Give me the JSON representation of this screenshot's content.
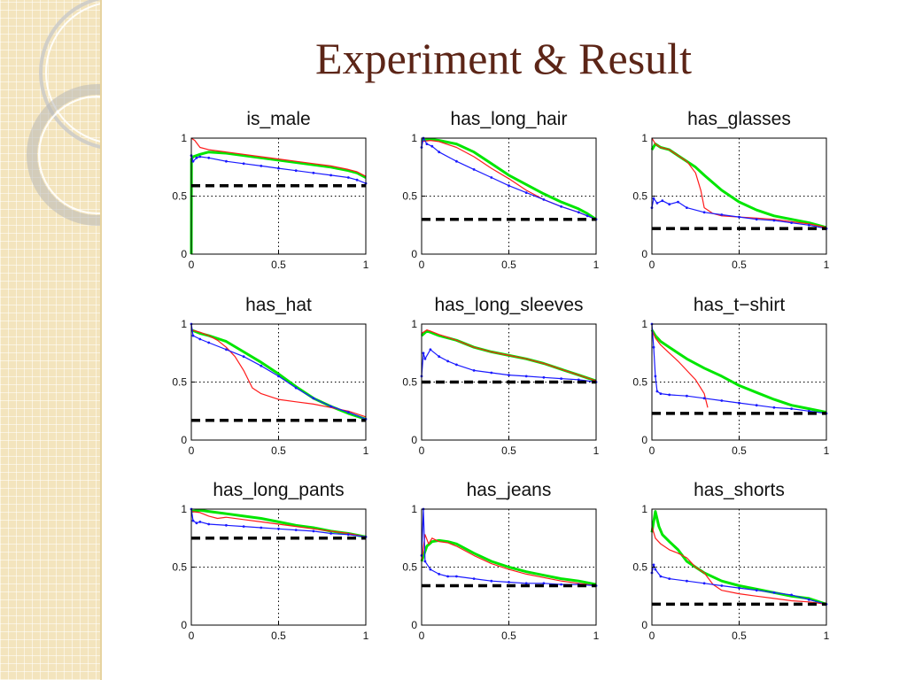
{
  "slide": {
    "title": "Experiment & Result"
  },
  "colors": {
    "green": "#00e600",
    "red": "#ff1a1a",
    "blue": "#1a1aff",
    "baseline": "#000000",
    "title": "#5c2517"
  },
  "chart_data": [
    {
      "type": "line",
      "title": "is_male",
      "xlim": [
        0,
        1
      ],
      "ylim": [
        0,
        1
      ],
      "xticks": [
        "0",
        "0.5",
        "1"
      ],
      "yticks": [
        "0",
        "0.5",
        "1"
      ],
      "baseline": 0.59,
      "series": [
        {
          "color": "green",
          "x": [
            0,
            0.001,
            0.01,
            0.05,
            0.1,
            0.2,
            0.3,
            0.4,
            0.5,
            0.6,
            0.7,
            0.8,
            0.9,
            0.95,
            1.0
          ],
          "y": [
            0,
            0.82,
            0.84,
            0.86,
            0.88,
            0.87,
            0.85,
            0.83,
            0.81,
            0.79,
            0.77,
            0.75,
            0.72,
            0.7,
            0.66
          ]
        },
        {
          "color": "red",
          "x": [
            0,
            0.02,
            0.05,
            0.1,
            0.2,
            0.3,
            0.4,
            0.5,
            0.6,
            0.7,
            0.8,
            0.9,
            0.95,
            1.0
          ],
          "y": [
            1.0,
            0.98,
            0.92,
            0.9,
            0.88,
            0.86,
            0.84,
            0.82,
            0.8,
            0.78,
            0.76,
            0.73,
            0.71,
            0.67
          ]
        },
        {
          "color": "blue",
          "x": [
            0,
            0.01,
            0.03,
            0.05,
            0.1,
            0.2,
            0.3,
            0.4,
            0.5,
            0.6,
            0.7,
            0.8,
            0.9,
            0.95,
            1.0
          ],
          "y": [
            0.85,
            0.8,
            0.83,
            0.84,
            0.83,
            0.8,
            0.78,
            0.76,
            0.74,
            0.72,
            0.7,
            0.68,
            0.66,
            0.64,
            0.61
          ]
        }
      ]
    },
    {
      "type": "line",
      "title": "has_long_hair",
      "xlim": [
        0,
        1
      ],
      "ylim": [
        0,
        1
      ],
      "xticks": [
        "0",
        "0.5",
        "1"
      ],
      "yticks": [
        "0",
        "0.5",
        "1"
      ],
      "baseline": 0.3,
      "series": [
        {
          "color": "green",
          "x": [
            0,
            0.05,
            0.1,
            0.2,
            0.3,
            0.4,
            0.5,
            0.6,
            0.7,
            0.8,
            0.9,
            0.95,
            1.0
          ],
          "y": [
            0.98,
            0.99,
            0.98,
            0.95,
            0.88,
            0.78,
            0.68,
            0.6,
            0.52,
            0.45,
            0.39,
            0.35,
            0.3
          ]
        },
        {
          "color": "red",
          "x": [
            0,
            0.05,
            0.1,
            0.2,
            0.3,
            0.4,
            0.5,
            0.6,
            0.7,
            0.8,
            0.9,
            0.95,
            1.0
          ],
          "y": [
            0.97,
            0.98,
            0.97,
            0.92,
            0.84,
            0.74,
            0.65,
            0.55,
            0.47,
            0.41,
            0.36,
            0.33,
            0.3
          ]
        },
        {
          "color": "blue",
          "x": [
            0,
            0.01,
            0.03,
            0.06,
            0.1,
            0.2,
            0.3,
            0.4,
            0.5,
            0.6,
            0.7,
            0.8,
            0.9,
            0.95,
            1.0
          ],
          "y": [
            0.92,
            1.0,
            0.95,
            0.93,
            0.88,
            0.8,
            0.73,
            0.66,
            0.59,
            0.53,
            0.47,
            0.41,
            0.36,
            0.33,
            0.3
          ]
        }
      ]
    },
    {
      "type": "line",
      "title": "has_glasses",
      "xlim": [
        0,
        1
      ],
      "ylim": [
        0,
        1
      ],
      "xticks": [
        "0",
        "0.5",
        "1"
      ],
      "yticks": [
        "0",
        "0.5",
        "1"
      ],
      "baseline": 0.22,
      "series": [
        {
          "color": "green",
          "x": [
            0,
            0.02,
            0.05,
            0.1,
            0.15,
            0.2,
            0.25,
            0.3,
            0.4,
            0.5,
            0.6,
            0.7,
            0.8,
            0.9,
            1.0
          ],
          "y": [
            0.9,
            0.95,
            0.92,
            0.9,
            0.85,
            0.8,
            0.75,
            0.68,
            0.55,
            0.45,
            0.38,
            0.33,
            0.3,
            0.27,
            0.23
          ]
        },
        {
          "color": "red",
          "x": [
            0,
            0.02,
            0.05,
            0.1,
            0.15,
            0.2,
            0.25,
            0.28,
            0.3,
            0.35,
            0.4,
            0.5,
            0.6,
            0.7,
            0.8,
            0.9,
            1.0
          ],
          "y": [
            1.0,
            0.95,
            0.92,
            0.9,
            0.85,
            0.8,
            0.7,
            0.55,
            0.4,
            0.35,
            0.33,
            0.32,
            0.31,
            0.3,
            0.28,
            0.26,
            0.23
          ]
        },
        {
          "color": "blue",
          "x": [
            0,
            0.01,
            0.03,
            0.06,
            0.1,
            0.15,
            0.2,
            0.3,
            0.4,
            0.5,
            0.6,
            0.7,
            0.8,
            0.9,
            1.0
          ],
          "y": [
            0.4,
            0.48,
            0.44,
            0.46,
            0.43,
            0.45,
            0.4,
            0.36,
            0.34,
            0.32,
            0.3,
            0.29,
            0.27,
            0.25,
            0.22
          ]
        }
      ]
    },
    {
      "type": "line",
      "title": "has_hat",
      "xlim": [
        0,
        1
      ],
      "ylim": [
        0,
        1
      ],
      "xticks": [
        "0",
        "0.5",
        "1"
      ],
      "yticks": [
        "0",
        "0.5",
        "1"
      ],
      "baseline": 0.17,
      "series": [
        {
          "color": "green",
          "x": [
            0,
            0.05,
            0.1,
            0.2,
            0.3,
            0.4,
            0.5,
            0.6,
            0.7,
            0.8,
            0.9,
            1.0
          ],
          "y": [
            0.95,
            0.92,
            0.9,
            0.85,
            0.76,
            0.67,
            0.57,
            0.46,
            0.36,
            0.29,
            0.23,
            0.18
          ]
        },
        {
          "color": "red",
          "x": [
            0,
            0.05,
            0.1,
            0.15,
            0.2,
            0.25,
            0.3,
            0.35,
            0.4,
            0.5,
            0.6,
            0.7,
            0.8,
            0.9,
            1.0
          ],
          "y": [
            0.95,
            0.93,
            0.9,
            0.86,
            0.8,
            0.72,
            0.6,
            0.45,
            0.4,
            0.35,
            0.33,
            0.31,
            0.28,
            0.25,
            0.2
          ]
        },
        {
          "color": "blue",
          "x": [
            0,
            0.01,
            0.05,
            0.1,
            0.2,
            0.3,
            0.4,
            0.5,
            0.6,
            0.7,
            0.8,
            0.9,
            1.0
          ],
          "y": [
            1.0,
            0.9,
            0.87,
            0.84,
            0.78,
            0.72,
            0.64,
            0.55,
            0.45,
            0.36,
            0.29,
            0.24,
            0.18
          ]
        }
      ]
    },
    {
      "type": "line",
      "title": "has_long_sleeves",
      "xlim": [
        0,
        1
      ],
      "ylim": [
        0,
        1
      ],
      "xticks": [
        "0",
        "0.5",
        "1"
      ],
      "yticks": [
        "0",
        "0.5",
        "1"
      ],
      "baseline": 0.5,
      "series": [
        {
          "color": "green",
          "x": [
            0,
            0.03,
            0.05,
            0.1,
            0.2,
            0.3,
            0.4,
            0.5,
            0.6,
            0.7,
            0.8,
            0.9,
            1.0
          ],
          "y": [
            0.9,
            0.94,
            0.93,
            0.9,
            0.86,
            0.8,
            0.76,
            0.73,
            0.7,
            0.66,
            0.61,
            0.56,
            0.51
          ]
        },
        {
          "color": "red",
          "x": [
            0,
            0.03,
            0.05,
            0.1,
            0.2,
            0.3,
            0.4,
            0.5,
            0.6,
            0.7,
            0.8,
            0.9,
            1.0
          ],
          "y": [
            0.92,
            0.95,
            0.94,
            0.91,
            0.86,
            0.8,
            0.76,
            0.73,
            0.7,
            0.66,
            0.61,
            0.56,
            0.51
          ]
        },
        {
          "color": "blue",
          "x": [
            0,
            0.01,
            0.02,
            0.05,
            0.1,
            0.15,
            0.2,
            0.3,
            0.4,
            0.5,
            0.6,
            0.7,
            0.8,
            0.9,
            1.0
          ],
          "y": [
            0.55,
            0.75,
            0.7,
            0.78,
            0.72,
            0.68,
            0.65,
            0.6,
            0.58,
            0.56,
            0.55,
            0.54,
            0.53,
            0.52,
            0.5
          ]
        }
      ]
    },
    {
      "type": "line",
      "title": "has_t−shirt",
      "xlim": [
        0,
        1
      ],
      "ylim": [
        0,
        1
      ],
      "xticks": [
        "0",
        "0.5",
        "1"
      ],
      "yticks": [
        "0",
        "0.5",
        "1"
      ],
      "baseline": 0.23,
      "series": [
        {
          "color": "green",
          "x": [
            0,
            0.02,
            0.05,
            0.1,
            0.15,
            0.2,
            0.3,
            0.4,
            0.5,
            0.6,
            0.7,
            0.8,
            0.9,
            1.0
          ],
          "y": [
            0.95,
            0.9,
            0.85,
            0.8,
            0.75,
            0.7,
            0.62,
            0.55,
            0.47,
            0.41,
            0.35,
            0.3,
            0.27,
            0.24
          ]
        },
        {
          "color": "red",
          "x": [
            0,
            0.02,
            0.05,
            0.1,
            0.15,
            0.2,
            0.25,
            0.3,
            0.32
          ],
          "y": [
            0.95,
            0.88,
            0.82,
            0.75,
            0.68,
            0.6,
            0.52,
            0.4,
            0.28
          ]
        },
        {
          "color": "blue",
          "x": [
            0,
            0.01,
            0.02,
            0.03,
            0.05,
            0.1,
            0.2,
            0.3,
            0.4,
            0.5,
            0.6,
            0.7,
            0.8,
            0.9,
            1.0
          ],
          "y": [
            1.0,
            0.8,
            0.55,
            0.42,
            0.4,
            0.39,
            0.38,
            0.36,
            0.34,
            0.32,
            0.3,
            0.28,
            0.27,
            0.25,
            0.23
          ]
        }
      ]
    },
    {
      "type": "line",
      "title": "has_long_pants",
      "xlim": [
        0,
        1
      ],
      "ylim": [
        0,
        1
      ],
      "xticks": [
        "0",
        "0.5",
        "1"
      ],
      "yticks": [
        "0",
        "0.5",
        "1"
      ],
      "baseline": 0.75,
      "series": [
        {
          "color": "green",
          "x": [
            0,
            0.05,
            0.1,
            0.2,
            0.3,
            0.4,
            0.5,
            0.6,
            0.7,
            0.8,
            0.9,
            1.0
          ],
          "y": [
            0.98,
            0.99,
            0.98,
            0.96,
            0.94,
            0.92,
            0.89,
            0.86,
            0.84,
            0.81,
            0.79,
            0.76
          ]
        },
        {
          "color": "red",
          "x": [
            0,
            0.05,
            0.1,
            0.15,
            0.2,
            0.3,
            0.4,
            0.5,
            0.6,
            0.7,
            0.8,
            0.9,
            1.0
          ],
          "y": [
            0.98,
            0.97,
            0.94,
            0.92,
            0.93,
            0.91,
            0.89,
            0.87,
            0.85,
            0.83,
            0.81,
            0.79,
            0.76
          ]
        },
        {
          "color": "blue",
          "x": [
            0,
            0.01,
            0.03,
            0.05,
            0.1,
            0.2,
            0.3,
            0.4,
            0.5,
            0.6,
            0.7,
            0.8,
            0.9,
            1.0
          ],
          "y": [
            1.0,
            0.9,
            0.88,
            0.89,
            0.87,
            0.86,
            0.85,
            0.84,
            0.83,
            0.82,
            0.81,
            0.79,
            0.78,
            0.76
          ]
        }
      ]
    },
    {
      "type": "line",
      "title": "has_jeans",
      "xlim": [
        0,
        1
      ],
      "ylim": [
        0,
        1
      ],
      "xticks": [
        "0",
        "0.5",
        "1"
      ],
      "yticks": [
        "0",
        "0.5",
        "1"
      ],
      "baseline": 0.34,
      "series": [
        {
          "color": "green",
          "x": [
            0,
            0.03,
            0.06,
            0.1,
            0.15,
            0.2,
            0.3,
            0.4,
            0.5,
            0.6,
            0.7,
            0.8,
            0.9,
            1.0
          ],
          "y": [
            0.55,
            0.68,
            0.72,
            0.73,
            0.72,
            0.7,
            0.62,
            0.55,
            0.5,
            0.46,
            0.43,
            0.4,
            0.38,
            0.35
          ]
        },
        {
          "color": "red",
          "x": [
            0,
            0.02,
            0.04,
            0.06,
            0.1,
            0.15,
            0.2,
            0.3,
            0.4,
            0.5,
            0.6,
            0.7,
            0.8,
            0.9,
            1.0
          ],
          "y": [
            0.55,
            0.78,
            0.7,
            0.75,
            0.72,
            0.71,
            0.68,
            0.6,
            0.53,
            0.48,
            0.44,
            0.41,
            0.38,
            0.36,
            0.34
          ]
        },
        {
          "color": "blue",
          "x": [
            0,
            0.01,
            0.02,
            0.05,
            0.1,
            0.15,
            0.2,
            0.3,
            0.4,
            0.5,
            0.6,
            0.7,
            0.8,
            0.9,
            1.0
          ],
          "y": [
            0.6,
            1.0,
            0.55,
            0.48,
            0.44,
            0.42,
            0.42,
            0.4,
            0.38,
            0.37,
            0.36,
            0.36,
            0.35,
            0.35,
            0.34
          ]
        }
      ]
    },
    {
      "type": "line",
      "title": "has_shorts",
      "xlim": [
        0,
        1
      ],
      "ylim": [
        0,
        1
      ],
      "xticks": [
        "0",
        "0.5",
        "1"
      ],
      "yticks": [
        "0",
        "0.5",
        "1"
      ],
      "baseline": 0.18,
      "series": [
        {
          "color": "green",
          "x": [
            0,
            0.02,
            0.04,
            0.06,
            0.1,
            0.15,
            0.2,
            0.3,
            0.4,
            0.5,
            0.6,
            0.7,
            0.8,
            0.9,
            1.0
          ],
          "y": [
            0.8,
            0.98,
            0.85,
            0.78,
            0.72,
            0.65,
            0.55,
            0.45,
            0.38,
            0.34,
            0.31,
            0.28,
            0.25,
            0.23,
            0.18
          ]
        },
        {
          "color": "red",
          "x": [
            0,
            0.02,
            0.05,
            0.1,
            0.15,
            0.2,
            0.25,
            0.3,
            0.35,
            0.4,
            0.5,
            0.6,
            0.7,
            0.8,
            0.9,
            1.0
          ],
          "y": [
            0.85,
            0.75,
            0.7,
            0.65,
            0.62,
            0.58,
            0.5,
            0.45,
            0.35,
            0.3,
            0.27,
            0.25,
            0.23,
            0.21,
            0.2,
            0.18
          ]
        },
        {
          "color": "blue",
          "x": [
            0,
            0.01,
            0.02,
            0.05,
            0.1,
            0.2,
            0.3,
            0.4,
            0.5,
            0.6,
            0.7,
            0.8,
            0.9,
            1.0
          ],
          "y": [
            0.45,
            0.52,
            0.48,
            0.42,
            0.4,
            0.38,
            0.36,
            0.34,
            0.32,
            0.3,
            0.28,
            0.26,
            0.22,
            0.18
          ]
        }
      ]
    }
  ]
}
